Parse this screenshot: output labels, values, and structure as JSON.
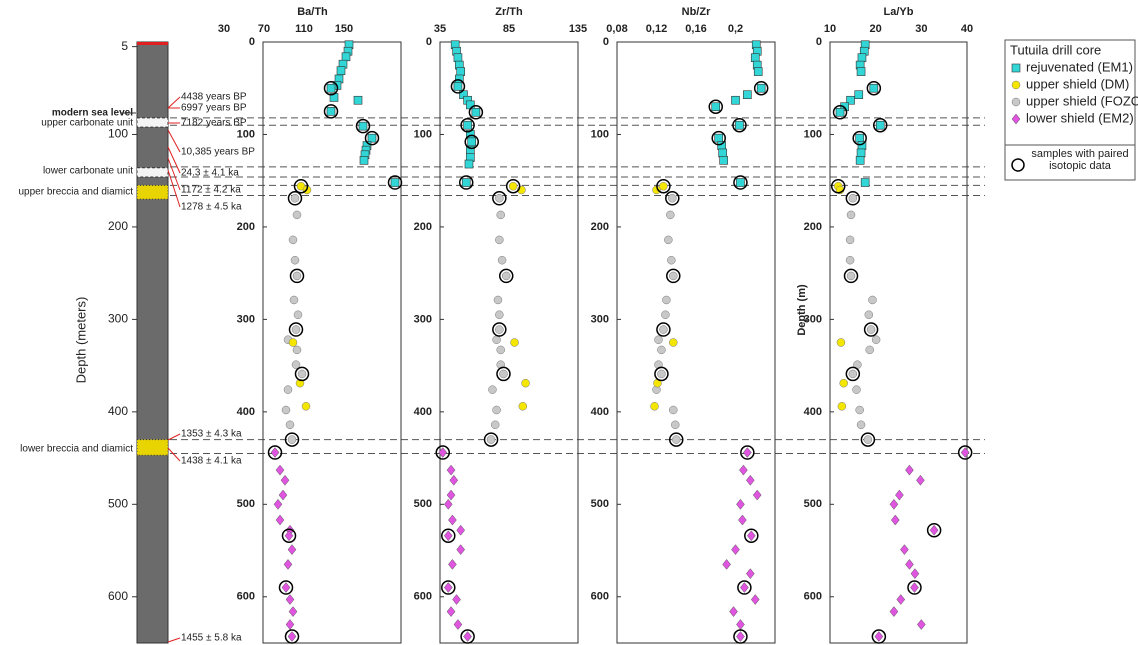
{
  "chart_data": [
    {
      "type": "scatter",
      "title": "Ba/Th",
      "xlim": [
        30,
        207
      ],
      "xticks": [
        30,
        70,
        110,
        150
      ],
      "ylim": [
        0,
        650
      ],
      "yticks": [
        0,
        100,
        200,
        300,
        400,
        500,
        600
      ],
      "legend_title": "Tutuila drill core",
      "legend": "right",
      "series": [
        {
          "name": "rejuvenated (EM1)",
          "color": "#33d6d6",
          "marker": "square",
          "x": [
            155,
            154,
            152,
            149,
            147,
            145,
            143,
            137,
            140,
            164,
            137,
            169,
            178,
            173,
            172,
            171,
            170,
            201
          ],
          "y": [
            3,
            10,
            16,
            24,
            31,
            40,
            47,
            50,
            60,
            63,
            75,
            91,
            104,
            112,
            117,
            122,
            128,
            152
          ]
        },
        {
          "name": "upper shield (DM)",
          "color": "#f5e600",
          "marker": "circle",
          "x": [
            107,
            113,
            99,
            106,
            112
          ],
          "y": [
            156,
            160,
            325,
            369,
            394
          ]
        },
        {
          "name": "upper shield (FOZO)",
          "color": "#c8c8c8",
          "marker": "circle",
          "x": [
            101,
            103,
            99,
            101,
            103,
            100,
            104,
            102,
            94,
            103,
            108,
            102,
            94,
            92,
            96,
            98
          ],
          "y": [
            169,
            187,
            214,
            236,
            253,
            279,
            295,
            311,
            322,
            333,
            359,
            349,
            376,
            398,
            414,
            430
          ]
        },
        {
          "name": "lower shield (EM2)",
          "color": "#e055e0",
          "marker": "diamond",
          "x": [
            81,
            86,
            91,
            89,
            84,
            86,
            96,
            95,
            98,
            94,
            92,
            96,
            99,
            96,
            98
          ],
          "y": [
            444,
            463,
            474,
            490,
            500,
            517,
            528,
            534,
            549,
            565,
            590,
            603,
            616,
            630,
            643
          ]
        },
        {
          "name": "samples with paired isotopic data",
          "color": "#000000",
          "marker": "ring",
          "x": [
            137,
            137,
            169,
            178,
            201,
            107,
            101,
            103,
            102,
            108,
            98,
            81,
            95,
            92,
            98
          ],
          "y": [
            50,
            75,
            91,
            104,
            152,
            156,
            169,
            253,
            311,
            359,
            430,
            444,
            534,
            590,
            643
          ]
        }
      ]
    },
    {
      "type": "scatter",
      "title": "Zr/Th",
      "xlim": [
        35,
        135
      ],
      "xticks": [
        35,
        85,
        135
      ],
      "ylim": [
        0,
        650
      ],
      "yticks": [
        0,
        100,
        200,
        300,
        400,
        500,
        600
      ],
      "series": [
        {
          "color": "#33d6d6",
          "marker": "square",
          "x": [
            46,
            47,
            48,
            49,
            50,
            49,
            48,
            52,
            55,
            57,
            61,
            55,
            57,
            58,
            57,
            57,
            56,
            54
          ],
          "y": [
            3,
            10,
            17,
            25,
            32,
            40,
            48,
            57,
            63,
            68,
            76,
            90,
            100,
            108,
            117,
            125,
            132,
            152
          ]
        },
        {
          "color": "#f5e600",
          "marker": "circle",
          "x": [
            88,
            94,
            89,
            97,
            95
          ],
          "y": [
            156,
            160,
            325,
            369,
            394
          ]
        },
        {
          "color": "#c8c8c8",
          "marker": "circle",
          "x": [
            78,
            79,
            78,
            80,
            83,
            77,
            78,
            78,
            76,
            79,
            81,
            79,
            73,
            76,
            75,
            72
          ],
          "y": [
            169,
            187,
            214,
            236,
            253,
            279,
            295,
            311,
            322,
            333,
            359,
            349,
            376,
            398,
            414,
            430
          ]
        },
        {
          "color": "#e055e0",
          "marker": "diamond",
          "x": [
            37,
            43,
            45,
            43,
            41,
            44,
            50,
            41,
            50,
            44,
            41,
            47,
            43,
            48,
            55
          ],
          "y": [
            444,
            463,
            474,
            490,
            500,
            517,
            528,
            534,
            549,
            565,
            590,
            603,
            616,
            630,
            643
          ]
        },
        {
          "color": "#000000",
          "marker": "ring",
          "x": [
            48,
            61,
            55,
            58,
            54,
            88,
            78,
            83,
            78,
            81,
            72,
            37,
            41,
            41,
            55
          ],
          "y": [
            48,
            76,
            90,
            108,
            152,
            156,
            169,
            253,
            311,
            359,
            430,
            444,
            534,
            590,
            643
          ]
        }
      ]
    },
    {
      "type": "scatter",
      "title": "Nb/Zr",
      "xlim": [
        0.08,
        0.24
      ],
      "xticks": [
        {
          "value": 0.08,
          "label": "0,08"
        },
        {
          "value": 0.12,
          "label": "0,12"
        },
        {
          "value": 0.16,
          "label": "0,16"
        },
        {
          "value": 0.2,
          "label": "0,2"
        }
      ],
      "ylim": [
        0,
        650
      ],
      "yticks": [
        0,
        100,
        200,
        300,
        400,
        500,
        600
      ],
      "series": [
        {
          "color": "#33d6d6",
          "marker": "square",
          "x": [
            0.221,
            0.222,
            0.22,
            0.222,
            0.223,
            0.226,
            0.212,
            0.2,
            0.18,
            0.204,
            0.183,
            0.186,
            0.187,
            0.188,
            0.205
          ],
          "y": [
            3,
            10,
            17,
            25,
            32,
            50,
            57,
            63,
            70,
            90,
            104,
            112,
            120,
            128,
            152
          ]
        },
        {
          "color": "#f5e600",
          "marker": "circle",
          "x": [
            0.127,
            0.12,
            0.137,
            0.121,
            0.118
          ],
          "y": [
            156,
            160,
            325,
            369,
            394
          ]
        },
        {
          "color": "#c8c8c8",
          "marker": "circle",
          "x": [
            0.136,
            0.134,
            0.132,
            0.135,
            0.137,
            0.13,
            0.129,
            0.127,
            0.122,
            0.125,
            0.125,
            0.122,
            0.12,
            0.137,
            0.139,
            0.14
          ],
          "y": [
            169,
            187,
            214,
            236,
            253,
            279,
            295,
            311,
            322,
            333,
            359,
            349,
            376,
            398,
            414,
            430
          ]
        },
        {
          "color": "#e055e0",
          "marker": "diamond",
          "x": [
            0.212,
            0.208,
            0.215,
            0.222,
            0.205,
            0.207,
            0.216,
            0.2,
            0.191,
            0.215,
            0.209,
            0.22,
            0.198,
            0.205,
            0.205
          ],
          "y": [
            444,
            463,
            474,
            490,
            500,
            517,
            534,
            549,
            565,
            575,
            590,
            603,
            616,
            630,
            643
          ]
        },
        {
          "color": "#000000",
          "marker": "ring",
          "x": [
            0.226,
            0.18,
            0.204,
            0.183,
            0.205,
            0.127,
            0.136,
            0.137,
            0.127,
            0.125,
            0.14,
            0.212,
            0.216,
            0.209,
            0.205
          ],
          "y": [
            50,
            70,
            90,
            104,
            152,
            156,
            169,
            253,
            311,
            359,
            430,
            444,
            534,
            590,
            643
          ]
        }
      ]
    },
    {
      "type": "scatter",
      "title": "La/Yb",
      "ylabel": "Depth (m)",
      "xlim": [
        10,
        40
      ],
      "xticks": [
        10,
        20,
        30,
        40
      ],
      "ylim": [
        0,
        650
      ],
      "yticks": [
        0,
        100,
        200,
        300,
        400,
        500,
        600
      ],
      "series": [
        {
          "color": "#33d6d6",
          "marker": "square",
          "x": [
            17.7,
            17.5,
            17.0,
            16.6,
            16.8,
            19.6,
            16.3,
            14.5,
            13.2,
            12.2,
            21.0,
            16.5,
            17.0,
            16.8,
            16.6,
            17.7
          ],
          "y": [
            3,
            10,
            17,
            25,
            32,
            50,
            57,
            63,
            70,
            76,
            90,
            104,
            112,
            120,
            128,
            152
          ]
        },
        {
          "color": "#f5e600",
          "marker": "circle",
          "x": [
            11.8,
            12.2,
            12.4,
            13.0,
            12.6
          ],
          "y": [
            156,
            160,
            325,
            369,
            394
          ]
        },
        {
          "color": "#c8c8c8",
          "marker": "circle",
          "x": [
            15.0,
            14.6,
            14.4,
            14.4,
            14.6,
            19.3,
            18.5,
            19.0,
            20.1,
            18.7,
            15.0,
            16.0,
            15.8,
            16.5,
            16.8,
            18.3
          ],
          "y": [
            169,
            187,
            214,
            236,
            253,
            279,
            295,
            311,
            322,
            333,
            359,
            349,
            376,
            398,
            414,
            430
          ]
        },
        {
          "color": "#e055e0",
          "marker": "diamond",
          "x": [
            39.6,
            27.4,
            29.8,
            25.2,
            24.0,
            24.3,
            32.8,
            26.3,
            27.4,
            28.6,
            28.5,
            25.5,
            24.0,
            30.0,
            20.7
          ],
          "y": [
            444,
            463,
            474,
            490,
            500,
            517,
            528,
            549,
            565,
            575,
            590,
            603,
            616,
            630,
            643
          ]
        },
        {
          "color": "#000000",
          "marker": "ring",
          "x": [
            19.6,
            12.2,
            21.0,
            16.5,
            11.8,
            15.0,
            14.6,
            19.0,
            15.0,
            18.3,
            39.6,
            32.8,
            28.5,
            20.7
          ],
          "y": [
            50,
            76,
            90,
            104,
            156,
            169,
            253,
            311,
            359,
            430,
            444,
            528,
            590,
            643
          ]
        }
      ]
    }
  ],
  "column": {
    "ylabel": "Depth (meters)",
    "ylim": [
      0,
      650
    ],
    "yticks": [
      5,
      100,
      200,
      300,
      400,
      500,
      600
    ],
    "carbonate_units": [
      [
        82,
        92
      ],
      [
        136,
        146
      ]
    ],
    "breccia_units": [
      [
        155,
        170
      ],
      [
        430,
        447
      ]
    ],
    "contacts": [
      82,
      90,
      135,
      146,
      155,
      166,
      430,
      445
    ],
    "unit_labels": [
      "modern sea level",
      "upper carbonate unit",
      "lower carbonate unit",
      "upper breccia and diamict",
      "lower breccia and diamict"
    ],
    "ages": [
      "4438 years BP",
      "6997 years BP",
      "7182  years BP",
      "10,385 years BP",
      "24.3 ± 4.1 ka",
      "1172 ± 4.2 ka",
      "1278 ± 4.5 ka",
      "1353 ± 4.3 ka",
      "1438 ± 4.1 ka",
      "1455 ± 5.8 ka"
    ]
  }
}
